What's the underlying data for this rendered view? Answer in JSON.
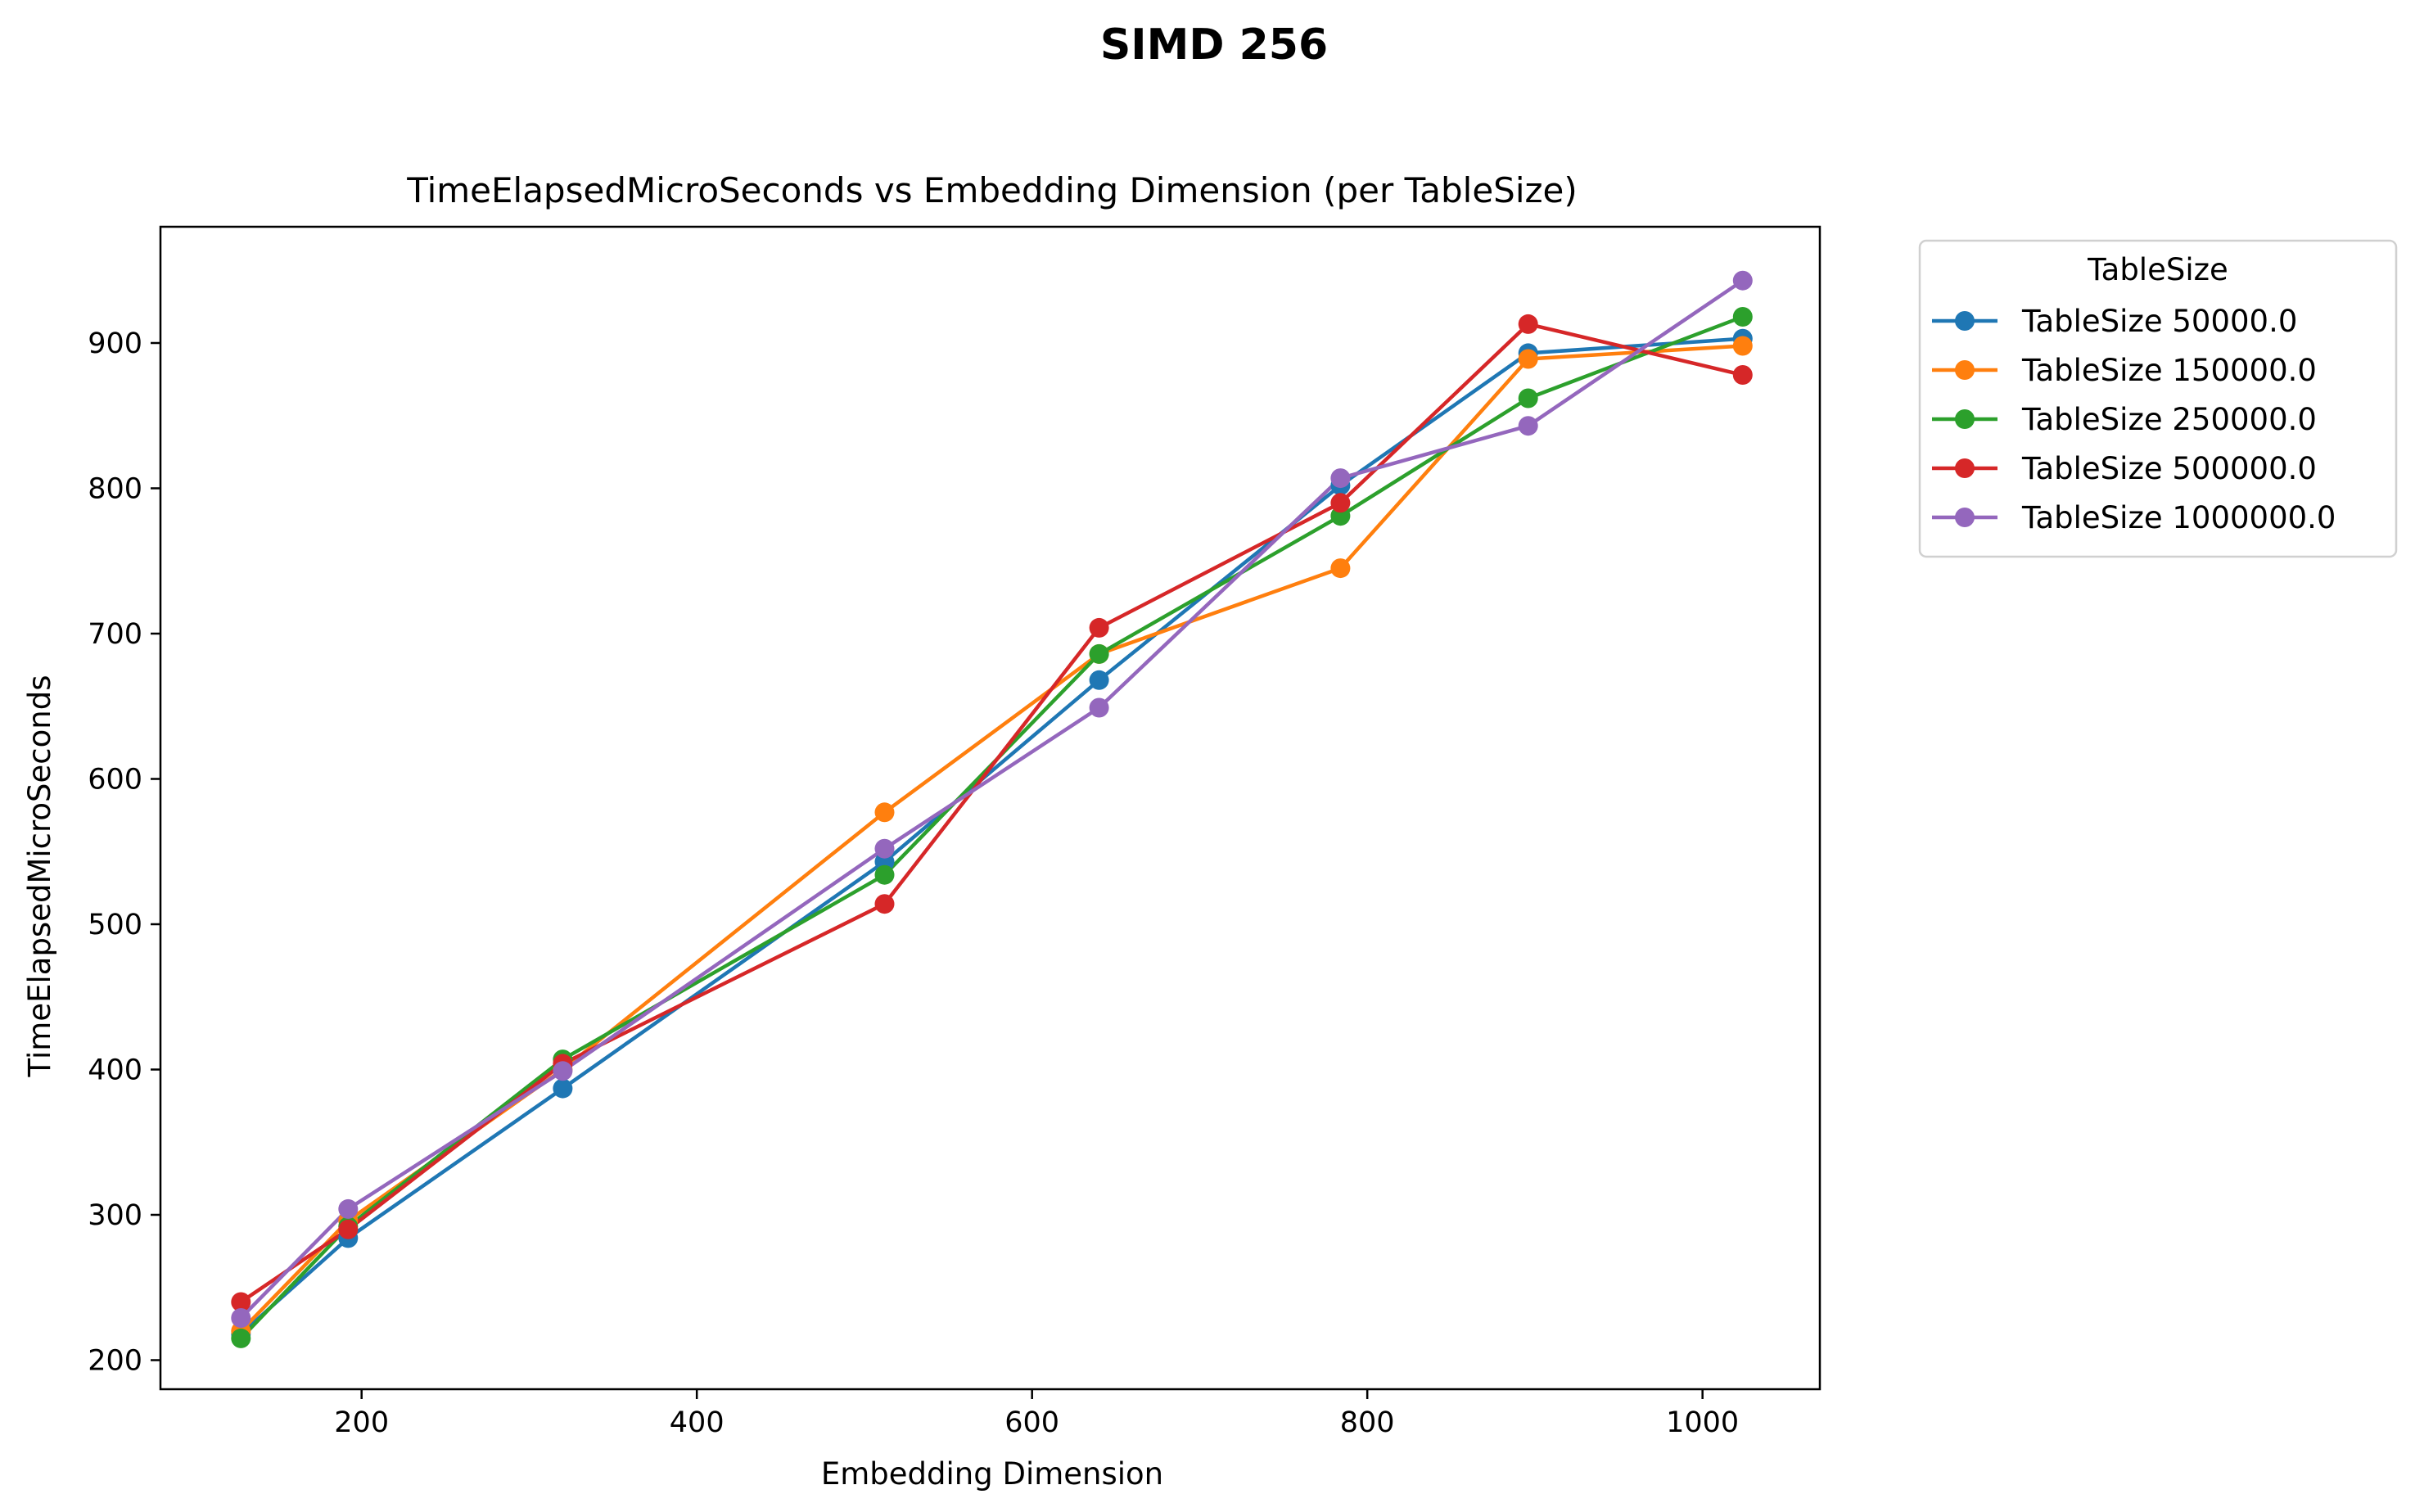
{
  "figure_title": "SIMD 256",
  "chart_data": {
    "type": "line",
    "title": "TimeElapsedMicroSeconds vs Embedding Dimension (per TableSize)",
    "xlabel": "Embedding Dimension",
    "ylabel": "TimeElapsedMicroSeconds",
    "xlim": [
      80,
      1070
    ],
    "ylim": [
      180,
      980
    ],
    "xticks": [
      200,
      400,
      600,
      800,
      1000
    ],
    "yticks": [
      200,
      300,
      400,
      500,
      600,
      700,
      800,
      900
    ],
    "grid": false,
    "legend": {
      "title": "TableSize",
      "placement": "outside-right"
    },
    "x": [
      128,
      192,
      320,
      512,
      640,
      784,
      896,
      1024
    ],
    "series": [
      {
        "name": "TableSize 50000.0",
        "color": "#1f77b4",
        "values": [
          218,
          284,
          387,
          543,
          668,
          802,
          893,
          903
        ]
      },
      {
        "name": "TableSize 150000.0",
        "color": "#ff7f0e",
        "values": [
          220,
          296,
          400,
          577,
          686,
          745,
          889,
          898
        ]
      },
      {
        "name": "TableSize 250000.0",
        "color": "#2ca02c",
        "values": [
          215,
          292,
          407,
          534,
          686,
          781,
          862,
          918
        ]
      },
      {
        "name": "TableSize 500000.0",
        "color": "#d62728",
        "values": [
          240,
          290,
          404,
          514,
          704,
          790,
          913,
          878
        ]
      },
      {
        "name": "TableSize 1000000.0",
        "color": "#9467bd",
        "values": [
          229,
          304,
          399,
          552,
          649,
          807,
          843,
          943
        ]
      }
    ]
  }
}
